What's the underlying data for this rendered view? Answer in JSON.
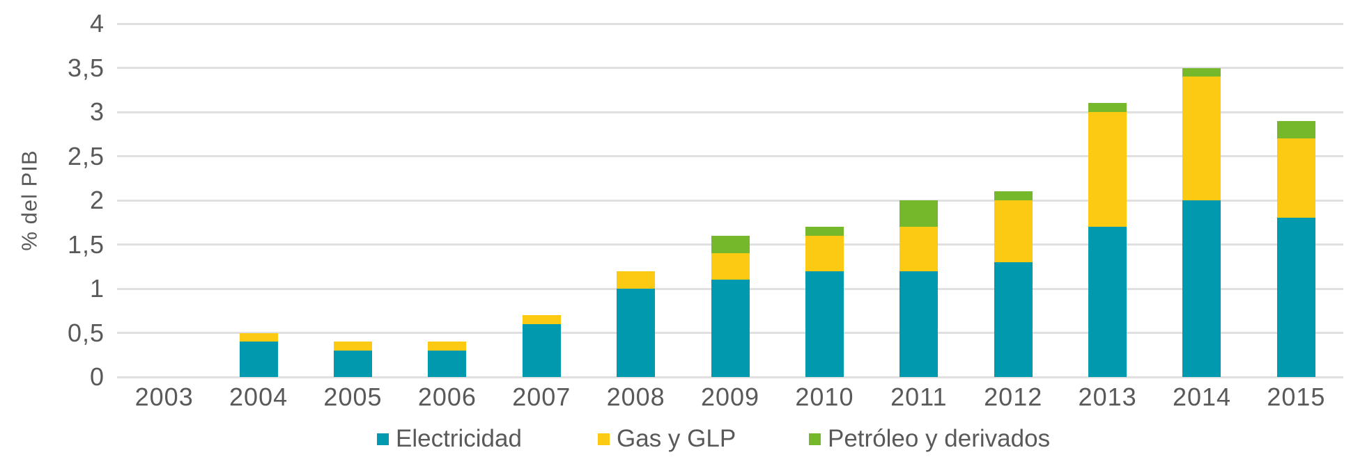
{
  "chart_data": {
    "type": "bar",
    "stacked": true,
    "title": "",
    "ylabel": "% del PIB",
    "xlabel": "",
    "ylim": [
      0,
      4
    ],
    "ytick_step": 0.5,
    "ytick_labels": [
      "0",
      "0,5",
      "1",
      "1,5",
      "2",
      "2,5",
      "3",
      "3,5",
      "4"
    ],
    "decimal_separator": ",",
    "grid": true,
    "legend_position": "bottom",
    "categories": [
      "2003",
      "2004",
      "2005",
      "2006",
      "2007",
      "2008",
      "2009",
      "2010",
      "2011",
      "2012",
      "2013",
      "2014",
      "2015"
    ],
    "series": [
      {
        "name": "Electricidad",
        "color": "#0099AD",
        "values": [
          0,
          0.4,
          0.3,
          0.3,
          0.6,
          1.0,
          1.1,
          1.2,
          1.2,
          1.3,
          1.7,
          2.0,
          1.8
        ]
      },
      {
        "name": "Gas y GLP",
        "color": "#FCC913",
        "values": [
          0,
          0.1,
          0.1,
          0.1,
          0.1,
          0.2,
          0.3,
          0.4,
          0.5,
          0.7,
          1.3,
          1.4,
          0.9
        ]
      },
      {
        "name": "Petróleo y derivados",
        "color": "#76B82B",
        "values": [
          0,
          0,
          0,
          0,
          0,
          0,
          0.2,
          0.1,
          0.3,
          0.1,
          0.1,
          0.1,
          0.2
        ]
      }
    ],
    "stack_totals": [
      0,
      0.5,
      0.4,
      0.4,
      0.7,
      1.2,
      1.6,
      1.7,
      2.0,
      2.1,
      3.1,
      3.5,
      2.9
    ]
  },
  "colors": {
    "background": "#FFFFFF",
    "text": "#595959",
    "gridline": "#E0E0E0",
    "electricidad": "#0099AD",
    "gas_y_glp": "#FCC913",
    "petroleo_y_derivados": "#76B82B"
  }
}
